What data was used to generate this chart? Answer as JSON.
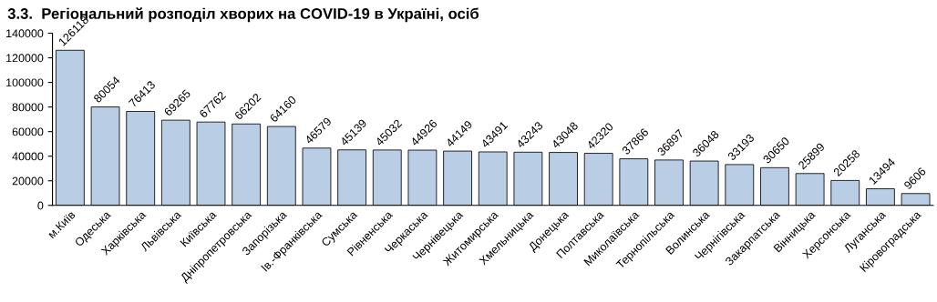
{
  "chart_data": {
    "type": "bar",
    "title": "3.3.  Регіональний розподіл хворих на COVID-19 в Україні, осіб",
    "categories": [
      "м.Київ",
      "Одеська",
      "Харківська",
      "Львівська",
      "Київська",
      "Дніпропетровська",
      "Запорізька",
      "Ів.-Франківська",
      "Сумська",
      "Рівненська",
      "Черкаська",
      "Чернівецька",
      "Житомирська",
      "Хмельницька",
      "Донецька",
      "Полтавська",
      "Миколаївська",
      "Тернопільська",
      "Волинська",
      "Чернігівська",
      "Закарпатська",
      "Вінницька",
      "Херсонська",
      "Луганська",
      "Кіровоградська"
    ],
    "values": [
      126118,
      80054,
      76413,
      69265,
      67762,
      66202,
      64160,
      46579,
      45139,
      45032,
      44926,
      44149,
      43491,
      43243,
      43048,
      42320,
      37866,
      36897,
      36048,
      33193,
      30650,
      25899,
      20258,
      13494,
      9606
    ],
    "color": "#b9cde5",
    "data_labels": true,
    "ylim": [
      0,
      140000
    ],
    "yticks": [
      0,
      20000,
      40000,
      60000,
      80000,
      100000,
      120000,
      140000
    ],
    "grid": false,
    "legend": false
  }
}
